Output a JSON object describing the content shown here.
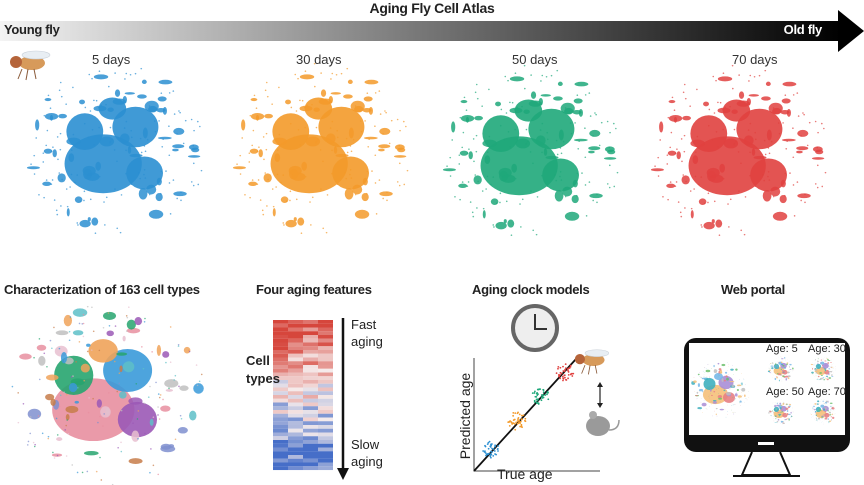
{
  "timeline": {
    "title": "Aging Fly Cell Atlas",
    "start_label": "Young fly",
    "end_label": "Old fly",
    "gradient_colors": [
      "#ffffff",
      "#000000"
    ]
  },
  "timepoints": [
    {
      "label": "5 days",
      "color": "#2b8fd1"
    },
    {
      "label": "30 days",
      "color": "#f39a2a"
    },
    {
      "label": "50 days",
      "color": "#1fa87a"
    },
    {
      "label": "70 days",
      "color": "#e0413f"
    }
  ],
  "panels": {
    "cell_types": {
      "title": "Characterization of 163 cell types"
    },
    "features": {
      "title": "Four aging features",
      "y_label": "Cell types",
      "top_label": "Fast aging",
      "bottom_label": "Slow aging"
    },
    "clock": {
      "title": "Aging clock models",
      "x_label": "True age",
      "y_label": "Predicted age"
    },
    "portal": {
      "title": "Web portal",
      "ages": [
        "Age: 5",
        "Age: 30",
        "Age: 50",
        "Age: 70"
      ]
    }
  }
}
